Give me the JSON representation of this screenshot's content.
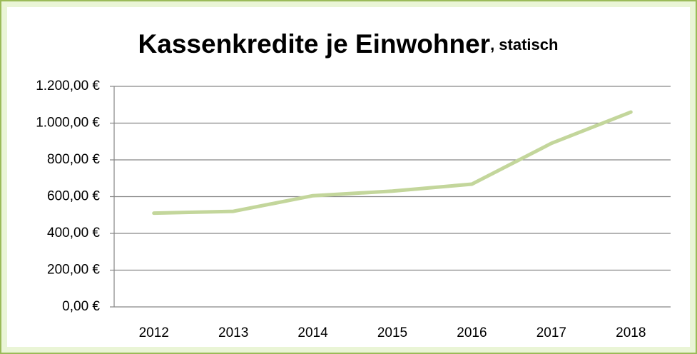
{
  "chart_data": {
    "type": "line",
    "title": "Kassenkredite  je Einwohner",
    "subtitle": ", statisch",
    "categories": [
      "2012",
      "2013",
      "2014",
      "2015",
      "2016",
      "2017",
      "2018"
    ],
    "series": [
      {
        "color": "#c3d69b",
        "values": [
          510,
          520,
          605,
          630,
          668,
          890,
          1060
        ]
      }
    ],
    "ylim": [
      0,
      1200
    ],
    "yticks": [
      {
        "value": 0,
        "label": "0,00 €"
      },
      {
        "value": 200,
        "label": "200,00 €"
      },
      {
        "value": 400,
        "label": "400,00 €"
      },
      {
        "value": 600,
        "label": "600,00 €"
      },
      {
        "value": 800,
        "label": "800,00 €"
      },
      {
        "value": 1000,
        "label": "1.000,00 €"
      },
      {
        "value": 1200,
        "label": "1.200,00 €"
      }
    ],
    "grid": true
  }
}
